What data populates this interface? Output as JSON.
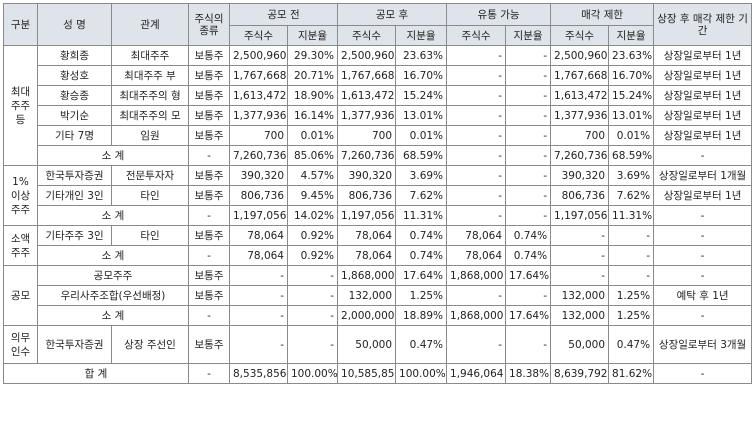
{
  "header": {
    "category": "구분",
    "name": "성 명",
    "relation": "관계",
    "stock_type": "주식의 종류",
    "pre_ipo": "공모 전",
    "post_ipo": "공모 후",
    "tradable": "유통 가능",
    "sale_restricted": "매각 제한",
    "restriction_period": "상장 후 매각 제한 기간",
    "shares": "주식수",
    "ratio": "지분율"
  },
  "groups": [
    {
      "label": "최대 주주 등"
    },
    {
      "label": "1% 이상 주주"
    },
    {
      "label": "소액 주주"
    },
    {
      "label": "공모"
    },
    {
      "label": "의무 인수"
    }
  ],
  "rows": [
    {
      "name": "황희종",
      "relation": "최대주주",
      "type": "보통주",
      "pre_shares": "2,500,960",
      "pre_ratio": "29.30%",
      "post_shares": "2,500,960",
      "post_ratio": "23.63%",
      "trade_shares": "-",
      "trade_ratio": "-",
      "rest_shares": "2,500,960",
      "rest_ratio": "23.63%",
      "period": "상장일로부터 1년"
    },
    {
      "name": "황성호",
      "relation": "최대주주 부",
      "type": "보통주",
      "pre_shares": "1,767,668",
      "pre_ratio": "20.71%",
      "post_shares": "1,767,668",
      "post_ratio": "16.70%",
      "trade_shares": "-",
      "trade_ratio": "-",
      "rest_shares": "1,767,668",
      "rest_ratio": "16.70%",
      "period": "상장일로부터 1년"
    },
    {
      "name": "황승종",
      "relation": "최대주주의 형",
      "type": "보통주",
      "pre_shares": "1,613,472",
      "pre_ratio": "18.90%",
      "post_shares": "1,613,472",
      "post_ratio": "15.24%",
      "trade_shares": "-",
      "trade_ratio": "-",
      "rest_shares": "1,613,472",
      "rest_ratio": "15.24%",
      "period": "상장일로부터 1년"
    },
    {
      "name": "박기순",
      "relation": "최대주주의 모",
      "type": "보통주",
      "pre_shares": "1,377,936",
      "pre_ratio": "16.14%",
      "post_shares": "1,377,936",
      "post_ratio": "13.01%",
      "trade_shares": "-",
      "trade_ratio": "-",
      "rest_shares": "1,377,936",
      "rest_ratio": "13.01%",
      "period": "상장일로부터 1년"
    },
    {
      "name": "기타 7명",
      "relation": "임원",
      "type": "보통주",
      "pre_shares": "700",
      "pre_ratio": "0.01%",
      "post_shares": "700",
      "post_ratio": "0.01%",
      "trade_shares": "-",
      "trade_ratio": "-",
      "rest_shares": "700",
      "rest_ratio": "0.01%",
      "period": "상장일로부터 1년"
    },
    {
      "name": "소 계",
      "type": "-",
      "pre_shares": "7,260,736",
      "pre_ratio": "85.06%",
      "post_shares": "7,260,736",
      "post_ratio": "68.59%",
      "trade_shares": "-",
      "trade_ratio": "-",
      "rest_shares": "7,260,736",
      "rest_ratio": "68.59%",
      "period": "-"
    },
    {
      "name": "한국투자증권",
      "relation": "전문투자자",
      "type": "보통주",
      "pre_shares": "390,320",
      "pre_ratio": "4.57%",
      "post_shares": "390,320",
      "post_ratio": "3.69%",
      "trade_shares": "-",
      "trade_ratio": "-",
      "rest_shares": "390,320",
      "rest_ratio": "3.69%",
      "period": "상장일로부터 1개월"
    },
    {
      "name": "기타개인 3인",
      "relation": "타인",
      "type": "보통주",
      "pre_shares": "806,736",
      "pre_ratio": "9.45%",
      "post_shares": "806,736",
      "post_ratio": "7.62%",
      "trade_shares": "-",
      "trade_ratio": "-",
      "rest_shares": "806,736",
      "rest_ratio": "7.62%",
      "period": "상장일로부터 1년"
    },
    {
      "name": "소 계",
      "type": "-",
      "pre_shares": "1,197,056",
      "pre_ratio": "14.02%",
      "post_shares": "1,197,056",
      "post_ratio": "11.31%",
      "trade_shares": "-",
      "trade_ratio": "-",
      "rest_shares": "1,197,056",
      "rest_ratio": "11.31%",
      "period": "-"
    },
    {
      "name": "기타주주 3인",
      "relation": "타인",
      "type": "보통주",
      "pre_shares": "78,064",
      "pre_ratio": "0.92%",
      "post_shares": "78,064",
      "post_ratio": "0.74%",
      "trade_shares": "78,064",
      "trade_ratio": "0.74%",
      "rest_shares": "-",
      "rest_ratio": "-",
      "period": "-"
    },
    {
      "name": "소 계",
      "type": "-",
      "pre_shares": "78,064",
      "pre_ratio": "0.92%",
      "post_shares": "78,064",
      "post_ratio": "0.74%",
      "trade_shares": "78,064",
      "trade_ratio": "0.74%",
      "rest_shares": "-",
      "rest_ratio": "-",
      "period": "-"
    },
    {
      "name": "공모주주",
      "type": "보통주",
      "pre_shares": "-",
      "pre_ratio": "-",
      "post_shares": "1,868,000",
      "post_ratio": "17.64%",
      "trade_shares": "1,868,000",
      "trade_ratio": "17.64%",
      "rest_shares": "-",
      "rest_ratio": "-",
      "period": "-"
    },
    {
      "name": "우리사주조합(우선배정)",
      "type": "보통주",
      "pre_shares": "-",
      "pre_ratio": "-",
      "post_shares": "132,000",
      "post_ratio": "1.25%",
      "trade_shares": "-",
      "trade_ratio": "-",
      "rest_shares": "132,000",
      "rest_ratio": "1.25%",
      "period": "예탁 후 1년"
    },
    {
      "name": "소 계",
      "type": "-",
      "pre_shares": "-",
      "pre_ratio": "-",
      "post_shares": "2,000,000",
      "post_ratio": "18.89%",
      "trade_shares": "1,868,000",
      "trade_ratio": "17.64%",
      "rest_shares": "132,000",
      "rest_ratio": "1.25%",
      "period": "-"
    },
    {
      "name": "한국투자증권",
      "relation": "상장 주선인",
      "type": "보통주",
      "pre_shares": "-",
      "pre_ratio": "-",
      "post_shares": "50,000",
      "post_ratio": "0.47%",
      "trade_shares": "-",
      "trade_ratio": "-",
      "rest_shares": "50,000",
      "rest_ratio": "0.47%",
      "period": "상장일로부터 3개월"
    },
    {
      "name": "합 계",
      "type": "-",
      "pre_shares": "8,535,856",
      "pre_ratio": "100.00%",
      "post_shares": "10,585,856",
      "post_ratio": "100.00%",
      "trade_shares": "1,946,064",
      "trade_ratio": "18.38%",
      "rest_shares": "8,639,792",
      "rest_ratio": "81.62%",
      "period": "-"
    }
  ]
}
